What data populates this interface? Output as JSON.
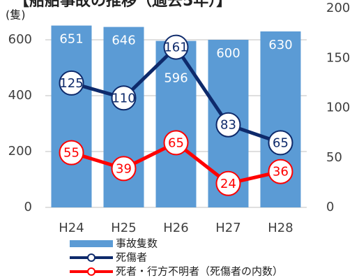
{
  "chart_data": {
    "type": "bar-line",
    "title": "【船舶事故の推移（過去5年）】",
    "y_unit": "(隻)",
    "categories": [
      "H24",
      "H25",
      "H26",
      "H27",
      "H28"
    ],
    "series": [
      {
        "name": "事故隻数",
        "color": "#5b9bd5",
        "type": "bar",
        "values": [
          651,
          646,
          596,
          600,
          630
        ]
      },
      {
        "name": "死傷者",
        "color": "#0e2a6b",
        "type": "line",
        "axis": "y2",
        "values": [
          125,
          110,
          161,
          83,
          65
        ]
      },
      {
        "name": "死者・行方不明者（死傷者の内数）",
        "color": "#ff0000",
        "type": "line",
        "axis": "y2",
        "values": [
          55,
          39,
          65,
          24,
          36
        ]
      }
    ],
    "ylim": [
      0,
      712.5
    ],
    "yticks": [
      0,
      200,
      400,
      600
    ],
    "y2lim": [
      0,
      200
    ],
    "y2ticks": [
      0,
      50,
      100,
      150,
      200
    ],
    "grid": true,
    "legend": "bottom"
  }
}
